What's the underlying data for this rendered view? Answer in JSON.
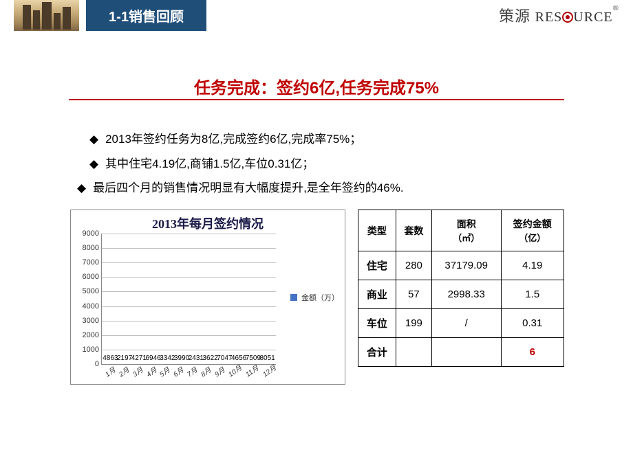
{
  "header": {
    "tab_label": "1-1销售回顾",
    "tab_bg": "#1f4e79",
    "brand_cn": "策源",
    "brand_en_left": "RES",
    "brand_en_right": "URCE"
  },
  "title": "任务完成：签约6亿,任务完成75%",
  "title_color": "#c00000",
  "bullets": [
    "2013年签约任务为8亿,完成签约6亿,完成率75%；",
    "其中住宅4.19亿,商铺1.5亿,车位0.31亿；",
    "最后四个月的销售情况明显有大幅度提升,是全年签约的46%."
  ],
  "chart": {
    "title": "2013年每月签约情况",
    "type": "bar",
    "categories": [
      "1月",
      "2月",
      "3月",
      "4月",
      "5月",
      "6月",
      "7月",
      "8月",
      "9月",
      "10月",
      "11月",
      "12月"
    ],
    "values": [
      4863,
      2197,
      4271,
      6946,
      3342,
      3990,
      2431,
      3622,
      7047,
      4656,
      7509,
      8051
    ],
    "bar_color": "#4472c4",
    "ymin": 0,
    "ymax": 9000,
    "ytick_step": 1000,
    "grid_color": "#bfbfbf",
    "legend_label": "金额（万）",
    "title_fontsize": 18,
    "tick_fontsize": 11
  },
  "table": {
    "headers": [
      "类型",
      "套数",
      "面积（㎡）",
      "签约金额（亿）"
    ],
    "header_sub": {
      "2": "（㎡）",
      "3": "（亿）"
    },
    "header_main": {
      "2": "面积",
      "3": "签约金额"
    },
    "rows": [
      {
        "type": "住宅",
        "count": "280",
        "area": "37179.09",
        "amount": "4.19"
      },
      {
        "type": "商业",
        "count": "57",
        "area": "2998.33",
        "amount": "1.5"
      },
      {
        "type": "车位",
        "count": "199",
        "area": "/",
        "amount": "0.31"
      }
    ],
    "total_label": "合计",
    "total_amount": "6"
  }
}
